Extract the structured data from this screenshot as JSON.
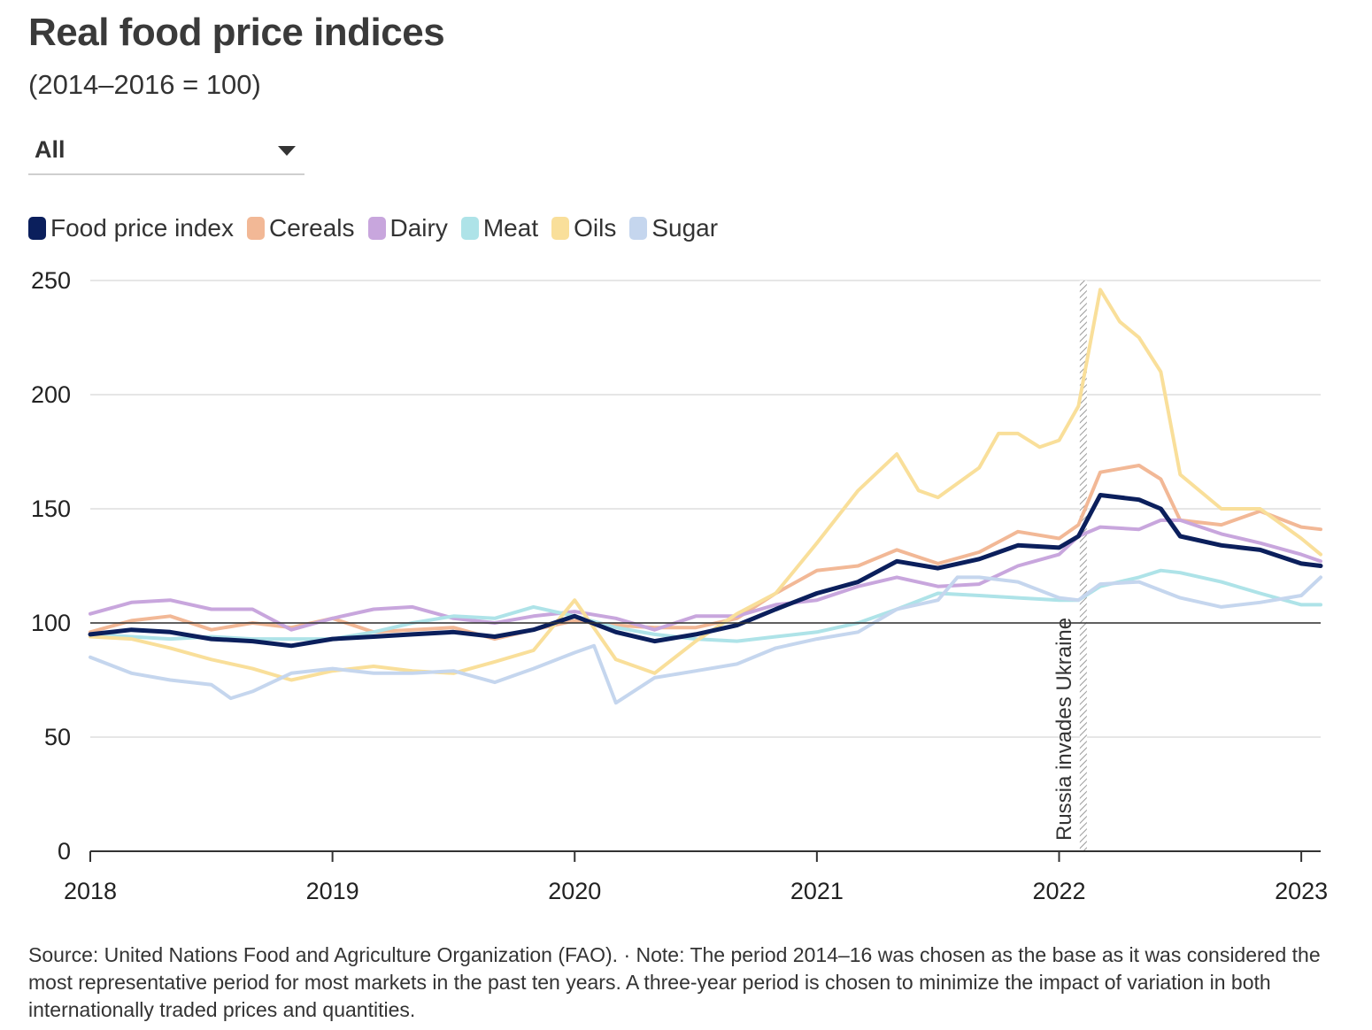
{
  "title": "Real food price indices",
  "subtitle": "(2014–2016 = 100)",
  "filter": {
    "selected": "All"
  },
  "legend": [
    {
      "label": "Food price index",
      "color": "#0b1f5c"
    },
    {
      "label": "Cereals",
      "color": "#f2b896"
    },
    {
      "label": "Dairy",
      "color": "#c8a6dd"
    },
    {
      "label": "Meat",
      "color": "#aee3e8"
    },
    {
      "label": "Oils",
      "color": "#f9df9a"
    },
    {
      "label": "Sugar",
      "color": "#c5d6ee"
    }
  ],
  "annotation": "Russia invades Ukraine",
  "source": "Source: United Nations Food and Agriculture Organization (FAO). · Note: The period 2014–16 was chosen as the base as it was considered the most representative period for most markets in the past ten years. A three-year period is chosen to minimize the impact of variation in both internationally traded prices and quantities.",
  "chart_data": {
    "type": "line",
    "title": "Real food price indices",
    "subtitle": "(2014–2016 = 100)",
    "x_unit": "year",
    "xlim": [
      2018.0,
      2023.08
    ],
    "ylim": [
      0,
      250
    ],
    "yticks": [
      0,
      50,
      100,
      150,
      200,
      250
    ],
    "xticks": [
      2018,
      2019,
      2020,
      2021,
      2022,
      2023
    ],
    "xtick_labels": [
      "2018",
      "2019",
      "2020",
      "2021",
      "2022",
      "2023"
    ],
    "grid": true,
    "reference_line": 100,
    "event": {
      "x": 2022.1,
      "label": "Russia invades Ukraine"
    },
    "legend_position": "top-left",
    "series": [
      {
        "name": "Food price index",
        "color": "#0b1f5c",
        "points": [
          [
            2018.0,
            95
          ],
          [
            2018.17,
            97
          ],
          [
            2018.33,
            96
          ],
          [
            2018.5,
            93
          ],
          [
            2018.67,
            92
          ],
          [
            2018.83,
            90
          ],
          [
            2019.0,
            93
          ],
          [
            2019.17,
            94
          ],
          [
            2019.33,
            95
          ],
          [
            2019.5,
            96
          ],
          [
            2019.67,
            94
          ],
          [
            2019.83,
            97
          ],
          [
            2020.0,
            103
          ],
          [
            2020.17,
            96
          ],
          [
            2020.33,
            92
          ],
          [
            2020.5,
            95
          ],
          [
            2020.67,
            99
          ],
          [
            2020.83,
            106
          ],
          [
            2021.0,
            113
          ],
          [
            2021.17,
            118
          ],
          [
            2021.33,
            127
          ],
          [
            2021.5,
            124
          ],
          [
            2021.67,
            128
          ],
          [
            2021.83,
            134
          ],
          [
            2022.0,
            133
          ],
          [
            2022.08,
            138
          ],
          [
            2022.17,
            156
          ],
          [
            2022.33,
            154
          ],
          [
            2022.42,
            150
          ],
          [
            2022.5,
            138
          ],
          [
            2022.67,
            134
          ],
          [
            2022.83,
            132
          ],
          [
            2023.0,
            126
          ],
          [
            2023.08,
            125
          ]
        ]
      },
      {
        "name": "Cereals",
        "color": "#f2b896",
        "points": [
          [
            2018.0,
            96
          ],
          [
            2018.17,
            101
          ],
          [
            2018.33,
            103
          ],
          [
            2018.5,
            97
          ],
          [
            2018.67,
            100
          ],
          [
            2018.83,
            98
          ],
          [
            2019.0,
            102
          ],
          [
            2019.17,
            96
          ],
          [
            2019.33,
            97
          ],
          [
            2019.5,
            98
          ],
          [
            2019.67,
            93
          ],
          [
            2019.83,
            97
          ],
          [
            2020.0,
            101
          ],
          [
            2020.17,
            99
          ],
          [
            2020.33,
            98
          ],
          [
            2020.5,
            98
          ],
          [
            2020.67,
            102
          ],
          [
            2020.83,
            113
          ],
          [
            2021.0,
            123
          ],
          [
            2021.17,
            125
          ],
          [
            2021.33,
            132
          ],
          [
            2021.5,
            126
          ],
          [
            2021.67,
            131
          ],
          [
            2021.83,
            140
          ],
          [
            2022.0,
            137
          ],
          [
            2022.08,
            143
          ],
          [
            2022.17,
            166
          ],
          [
            2022.33,
            169
          ],
          [
            2022.42,
            163
          ],
          [
            2022.5,
            145
          ],
          [
            2022.67,
            143
          ],
          [
            2022.83,
            149
          ],
          [
            2023.0,
            142
          ],
          [
            2023.08,
            141
          ]
        ]
      },
      {
        "name": "Dairy",
        "color": "#c8a6dd",
        "points": [
          [
            2018.0,
            104
          ],
          [
            2018.17,
            109
          ],
          [
            2018.33,
            110
          ],
          [
            2018.5,
            106
          ],
          [
            2018.67,
            106
          ],
          [
            2018.83,
            97
          ],
          [
            2019.0,
            102
          ],
          [
            2019.17,
            106
          ],
          [
            2019.33,
            107
          ],
          [
            2019.5,
            102
          ],
          [
            2019.67,
            100
          ],
          [
            2019.83,
            103
          ],
          [
            2020.0,
            105
          ],
          [
            2020.17,
            102
          ],
          [
            2020.33,
            97
          ],
          [
            2020.5,
            103
          ],
          [
            2020.67,
            103
          ],
          [
            2020.83,
            108
          ],
          [
            2021.0,
            110
          ],
          [
            2021.17,
            116
          ],
          [
            2021.33,
            120
          ],
          [
            2021.5,
            116
          ],
          [
            2021.67,
            117
          ],
          [
            2021.83,
            125
          ],
          [
            2022.0,
            130
          ],
          [
            2022.08,
            138
          ],
          [
            2022.17,
            142
          ],
          [
            2022.33,
            141
          ],
          [
            2022.42,
            145
          ],
          [
            2022.5,
            145
          ],
          [
            2022.67,
            139
          ],
          [
            2022.83,
            135
          ],
          [
            2023.0,
            130
          ],
          [
            2023.08,
            127
          ]
        ]
      },
      {
        "name": "Meat",
        "color": "#aee3e8",
        "points": [
          [
            2018.0,
            95
          ],
          [
            2018.17,
            94
          ],
          [
            2018.33,
            93
          ],
          [
            2018.5,
            94
          ],
          [
            2018.67,
            93
          ],
          [
            2018.83,
            93
          ],
          [
            2019.0,
            93
          ],
          [
            2019.17,
            96
          ],
          [
            2019.33,
            100
          ],
          [
            2019.5,
            103
          ],
          [
            2019.67,
            102
          ],
          [
            2019.83,
            107
          ],
          [
            2020.0,
            103
          ],
          [
            2020.17,
            98
          ],
          [
            2020.33,
            95
          ],
          [
            2020.5,
            93
          ],
          [
            2020.67,
            92
          ],
          [
            2020.83,
            94
          ],
          [
            2021.0,
            96
          ],
          [
            2021.17,
            100
          ],
          [
            2021.33,
            106
          ],
          [
            2021.5,
            113
          ],
          [
            2021.67,
            112
          ],
          [
            2021.83,
            111
          ],
          [
            2022.0,
            110
          ],
          [
            2022.08,
            110
          ],
          [
            2022.17,
            116
          ],
          [
            2022.33,
            120
          ],
          [
            2022.42,
            123
          ],
          [
            2022.5,
            122
          ],
          [
            2022.67,
            118
          ],
          [
            2022.83,
            113
          ],
          [
            2023.0,
            108
          ],
          [
            2023.08,
            108
          ]
        ]
      },
      {
        "name": "Oils",
        "color": "#f9df9a",
        "points": [
          [
            2018.0,
            94
          ],
          [
            2018.17,
            93
          ],
          [
            2018.33,
            89
          ],
          [
            2018.5,
            84
          ],
          [
            2018.67,
            80
          ],
          [
            2018.83,
            75
          ],
          [
            2019.0,
            79
          ],
          [
            2019.17,
            81
          ],
          [
            2019.33,
            79
          ],
          [
            2019.5,
            78
          ],
          [
            2019.67,
            83
          ],
          [
            2019.83,
            88
          ],
          [
            2020.0,
            110
          ],
          [
            2020.17,
            84
          ],
          [
            2020.33,
            78
          ],
          [
            2020.5,
            92
          ],
          [
            2020.67,
            104
          ],
          [
            2020.83,
            113
          ],
          [
            2021.0,
            135
          ],
          [
            2021.17,
            158
          ],
          [
            2021.33,
            174
          ],
          [
            2021.42,
            158
          ],
          [
            2021.5,
            155
          ],
          [
            2021.67,
            168
          ],
          [
            2021.75,
            183
          ],
          [
            2021.83,
            183
          ],
          [
            2021.92,
            177
          ],
          [
            2022.0,
            180
          ],
          [
            2022.08,
            195
          ],
          [
            2022.17,
            246
          ],
          [
            2022.25,
            232
          ],
          [
            2022.33,
            225
          ],
          [
            2022.42,
            210
          ],
          [
            2022.5,
            165
          ],
          [
            2022.67,
            150
          ],
          [
            2022.83,
            150
          ],
          [
            2023.0,
            137
          ],
          [
            2023.08,
            130
          ]
        ]
      },
      {
        "name": "Sugar",
        "color": "#c5d6ee",
        "points": [
          [
            2018.0,
            85
          ],
          [
            2018.17,
            78
          ],
          [
            2018.33,
            75
          ],
          [
            2018.5,
            73
          ],
          [
            2018.58,
            67
          ],
          [
            2018.67,
            70
          ],
          [
            2018.83,
            78
          ],
          [
            2019.0,
            80
          ],
          [
            2019.17,
            78
          ],
          [
            2019.33,
            78
          ],
          [
            2019.5,
            79
          ],
          [
            2019.67,
            74
          ],
          [
            2019.83,
            80
          ],
          [
            2020.0,
            87
          ],
          [
            2020.08,
            90
          ],
          [
            2020.17,
            65
          ],
          [
            2020.33,
            76
          ],
          [
            2020.5,
            79
          ],
          [
            2020.67,
            82
          ],
          [
            2020.83,
            89
          ],
          [
            2021.0,
            93
          ],
          [
            2021.17,
            96
          ],
          [
            2021.33,
            106
          ],
          [
            2021.5,
            110
          ],
          [
            2021.58,
            120
          ],
          [
            2021.67,
            120
          ],
          [
            2021.83,
            118
          ],
          [
            2022.0,
            111
          ],
          [
            2022.08,
            110
          ],
          [
            2022.17,
            117
          ],
          [
            2022.33,
            118
          ],
          [
            2022.5,
            111
          ],
          [
            2022.67,
            107
          ],
          [
            2022.83,
            109
          ],
          [
            2023.0,
            112
          ],
          [
            2023.08,
            120
          ]
        ]
      }
    ]
  }
}
